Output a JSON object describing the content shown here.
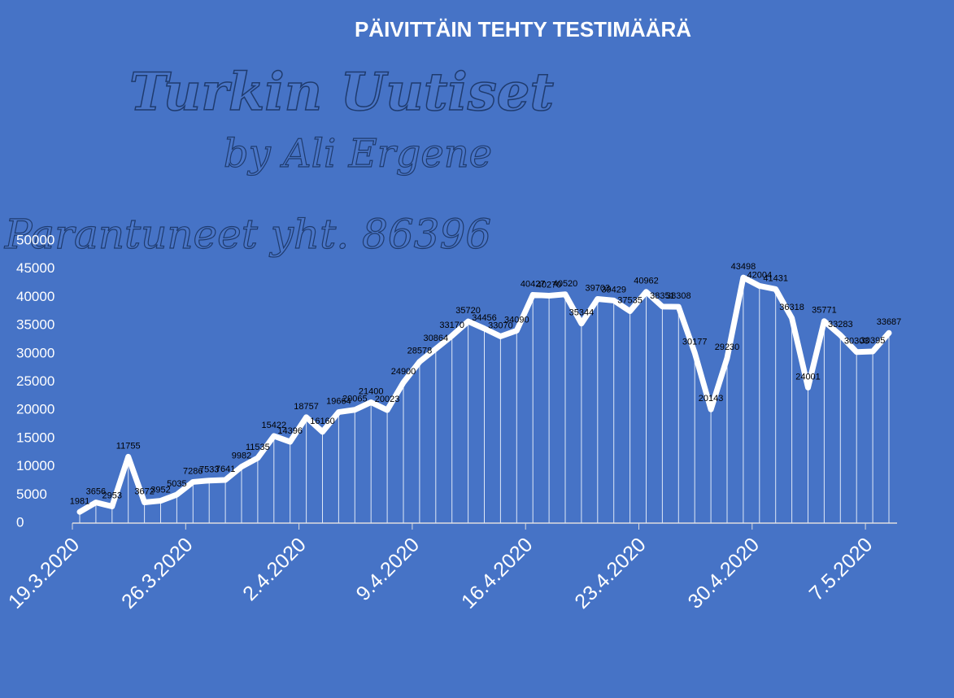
{
  "chart_data": {
    "type": "line",
    "title": "PÄIVITTÄIN TEHTY TESTIMÄÄRÄ",
    "annotations": [
      "Turkin Uutiset",
      "by Ali Ergene",
      "Parantuneet yht. 86396"
    ],
    "categories": [
      "19.3.2020",
      null,
      null,
      null,
      null,
      null,
      null,
      "26.3.2020",
      null,
      null,
      null,
      null,
      null,
      null,
      "2.4.2020",
      null,
      null,
      null,
      null,
      null,
      null,
      "9.4.2020",
      null,
      null,
      null,
      null,
      null,
      null,
      "16.4.2020",
      null,
      null,
      null,
      null,
      null,
      null,
      "23.4.2020",
      null,
      null,
      null,
      null,
      null,
      null,
      "30.4.2020",
      null,
      null,
      null,
      null,
      null,
      null,
      "7.5.2020",
      null
    ],
    "values": [
      1981,
      3656,
      2953,
      11755,
      3672,
      3952,
      5035,
      7286,
      7533,
      7641,
      9982,
      11535,
      15422,
      14396,
      18757,
      16160,
      19664,
      20065,
      21400,
      20023,
      24900,
      28578,
      30864,
      33170,
      35720,
      34456,
      33070,
      34090,
      40427,
      40270,
      40520,
      35344,
      39703,
      39429,
      37535,
      40962,
      38351,
      38308,
      30177,
      20143,
      29230,
      43498,
      42004,
      41431,
      36318,
      24001,
      35771,
      33283,
      30303,
      30395,
      33687
    ],
    "color": "#ffffff",
    "ylim": [
      0,
      50000
    ],
    "yticks": [
      0,
      5000,
      10000,
      15000,
      20000,
      25000,
      30000,
      35000,
      40000,
      45000,
      50000
    ]
  }
}
